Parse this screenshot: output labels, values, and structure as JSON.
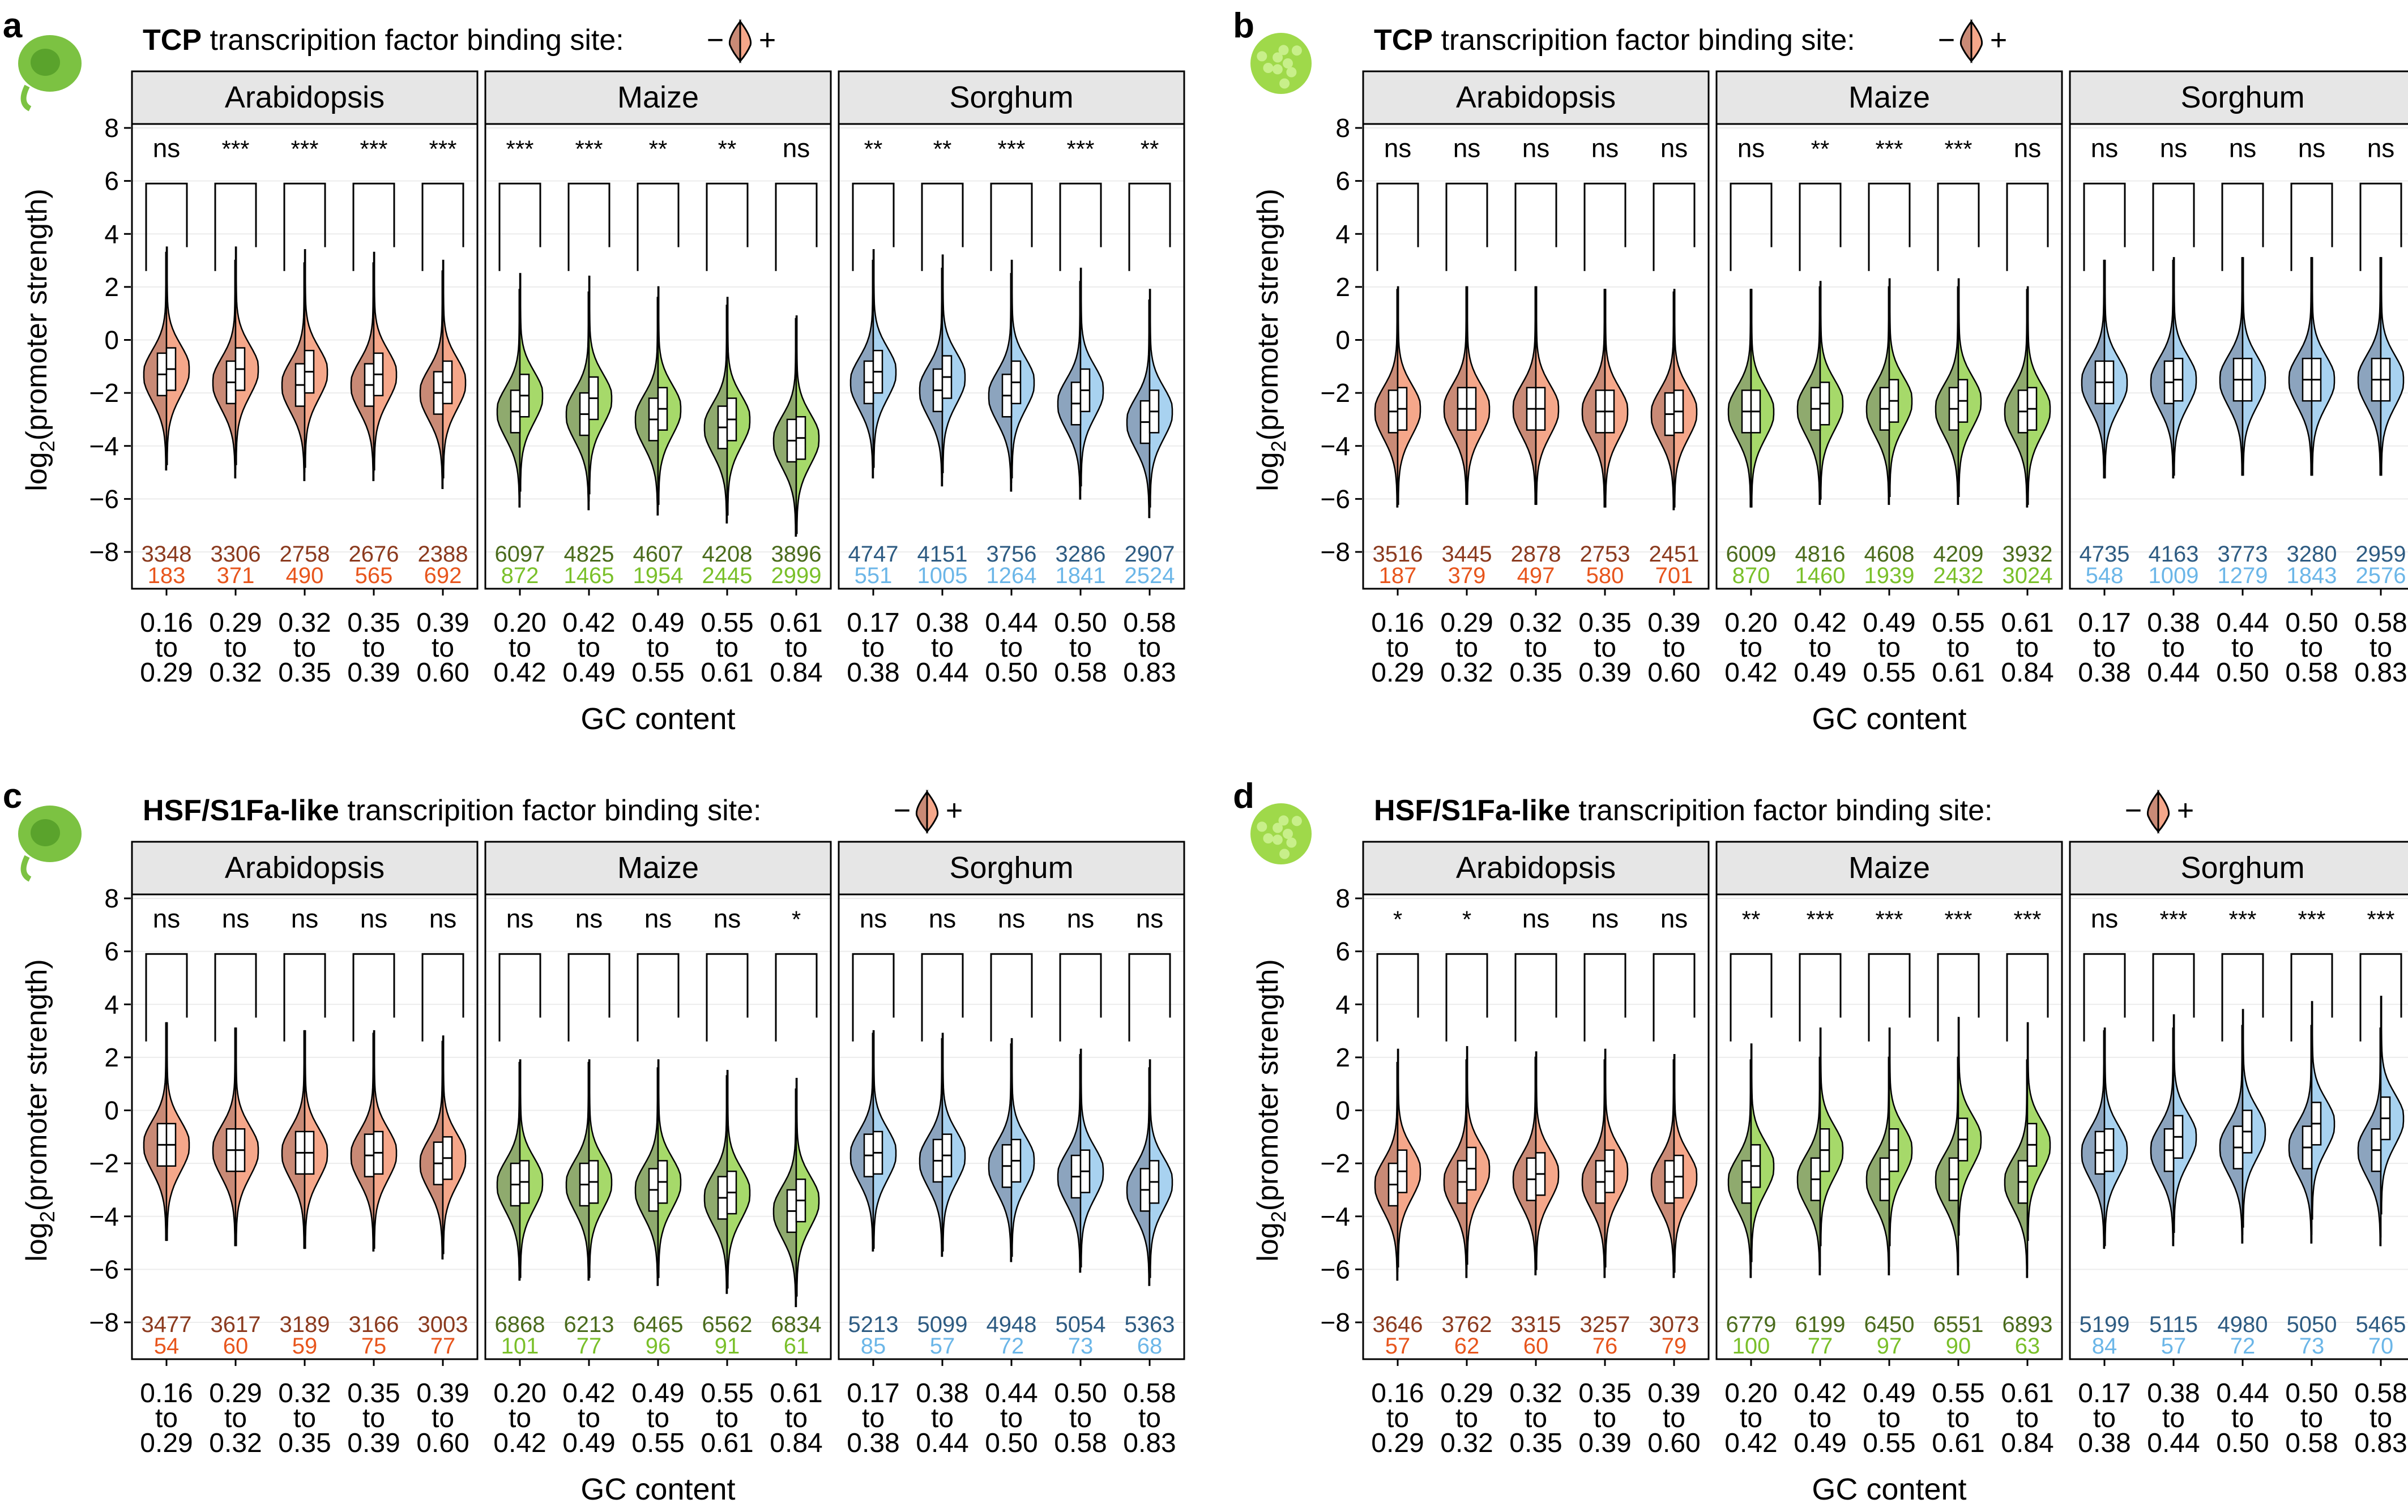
{
  "figure": {
    "ylabel_main": "log",
    "ylabel_sub": "2",
    "ylabel_rest": "(promoter strength)",
    "xlabel": "GC content",
    "legend_minus": "−",
    "legend_plus": "+",
    "tick_to": "to",
    "colors": {
      "arabidopsis_light": "#f5a78a",
      "arabidopsis_dark": "#c98a76",
      "maize_light": "#a6d96a",
      "maize_dark": "#8faa6e",
      "sorghum_light": "#a8d2f0",
      "sorghum_dark": "#8ca4be",
      "count_arabidopsis_top": "#8b3a1e",
      "count_arabidopsis_bottom": "#e8551c",
      "count_maize_top": "#4a6b1c",
      "count_maize_bottom": "#7ac02a",
      "count_sorghum_top": "#2d5b82",
      "count_sorghum_bottom": "#6bb6e8",
      "strip_fill": "#e6e6e6"
    },
    "icons": [
      "tobacco-leaf-icon",
      "maize-protoplast-icon",
      "tobacco-leaf-icon",
      "maize-protoplast-icon"
    ]
  },
  "chart_data": [
    {
      "panel_letter": "a",
      "type": "violin",
      "title_bold": "TCP",
      "title_rest": " transcripition factor binding site:",
      "ylim": [
        -9,
        8.5
      ],
      "yticks": [
        -8,
        -6,
        -4,
        -2,
        0,
        2,
        4,
        6,
        8
      ],
      "facets": [
        {
          "name": "Arabidopsis",
          "bins": [
            {
              "low": "0.16",
              "high": "0.29",
              "sig": "ns",
              "n_minus": 3348,
              "n_plus": 183,
              "med_minus": -1.3,
              "med_plus": -1.1
            },
            {
              "low": "0.29",
              "high": "0.32",
              "sig": "***",
              "n_minus": 3306,
              "n_plus": 371,
              "med_minus": -1.6,
              "med_plus": -1.1
            },
            {
              "low": "0.32",
              "high": "0.35",
              "sig": "***",
              "n_minus": 2758,
              "n_plus": 490,
              "med_minus": -1.7,
              "med_plus": -1.2
            },
            {
              "low": "0.35",
              "high": "0.39",
              "sig": "***",
              "n_minus": 2676,
              "n_plus": 565,
              "med_minus": -1.7,
              "med_plus": -1.3
            },
            {
              "low": "0.39",
              "high": "0.60",
              "sig": "***",
              "n_minus": 2388,
              "n_plus": 692,
              "med_minus": -2.0,
              "med_plus": -1.6
            }
          ]
        },
        {
          "name": "Maize",
          "bins": [
            {
              "low": "0.20",
              "high": "0.42",
              "sig": "***",
              "n_minus": 6097,
              "n_plus": 872,
              "med_minus": -2.7,
              "med_plus": -2.1
            },
            {
              "low": "0.42",
              "high": "0.49",
              "sig": "***",
              "n_minus": 4825,
              "n_plus": 1465,
              "med_minus": -2.8,
              "med_plus": -2.2
            },
            {
              "low": "0.49",
              "high": "0.55",
              "sig": "**",
              "n_minus": 4607,
              "n_plus": 1954,
              "med_minus": -3.0,
              "med_plus": -2.6
            },
            {
              "low": "0.55",
              "high": "0.61",
              "sig": "**",
              "n_minus": 4208,
              "n_plus": 2445,
              "med_minus": -3.3,
              "med_plus": -3.0
            },
            {
              "low": "0.61",
              "high": "0.84",
              "sig": "ns",
              "n_minus": 3896,
              "n_plus": 2999,
              "med_minus": -3.8,
              "med_plus": -3.7
            }
          ]
        },
        {
          "name": "Sorghum",
          "bins": [
            {
              "low": "0.17",
              "high": "0.38",
              "sig": "**",
              "n_minus": 4747,
              "n_plus": 551,
              "med_minus": -1.6,
              "med_plus": -1.2
            },
            {
              "low": "0.38",
              "high": "0.44",
              "sig": "**",
              "n_minus": 4151,
              "n_plus": 1005,
              "med_minus": -1.9,
              "med_plus": -1.4
            },
            {
              "low": "0.44",
              "high": "0.50",
              "sig": "***",
              "n_minus": 3756,
              "n_plus": 1264,
              "med_minus": -2.1,
              "med_plus": -1.6
            },
            {
              "low": "0.50",
              "high": "0.58",
              "sig": "***",
              "n_minus": 3286,
              "n_plus": 1841,
              "med_minus": -2.4,
              "med_plus": -1.9
            },
            {
              "low": "0.58",
              "high": "0.83",
              "sig": "**",
              "n_minus": 2907,
              "n_plus": 2524,
              "med_minus": -3.1,
              "med_plus": -2.7
            }
          ]
        }
      ]
    },
    {
      "panel_letter": "b",
      "type": "violin",
      "title_bold": "TCP",
      "title_rest": " transcripition factor binding site:",
      "ylim": [
        -9,
        8.5
      ],
      "yticks": [
        -8,
        -6,
        -4,
        -2,
        0,
        2,
        4,
        6,
        8
      ],
      "facets": [
        {
          "name": "Arabidopsis",
          "bins": [
            {
              "low": "0.16",
              "high": "0.29",
              "sig": "ns",
              "n_minus": 3516,
              "n_plus": 187,
              "med_minus": -2.7,
              "med_plus": -2.6
            },
            {
              "low": "0.29",
              "high": "0.32",
              "sig": "ns",
              "n_minus": 3445,
              "n_plus": 379,
              "med_minus": -2.6,
              "med_plus": -2.6
            },
            {
              "low": "0.32",
              "high": "0.35",
              "sig": "ns",
              "n_minus": 2878,
              "n_plus": 497,
              "med_minus": -2.6,
              "med_plus": -2.6
            },
            {
              "low": "0.35",
              "high": "0.39",
              "sig": "ns",
              "n_minus": 2753,
              "n_plus": 580,
              "med_minus": -2.7,
              "med_plus": -2.7
            },
            {
              "low": "0.39",
              "high": "0.60",
              "sig": "ns",
              "n_minus": 2451,
              "n_plus": 701,
              "med_minus": -2.8,
              "med_plus": -2.7
            }
          ]
        },
        {
          "name": "Maize",
          "bins": [
            {
              "low": "0.20",
              "high": "0.42",
              "sig": "ns",
              "n_minus": 6009,
              "n_plus": 870,
              "med_minus": -2.7,
              "med_plus": -2.7
            },
            {
              "low": "0.42",
              "high": "0.49",
              "sig": "**",
              "n_minus": 4816,
              "n_plus": 1460,
              "med_minus": -2.6,
              "med_plus": -2.4
            },
            {
              "low": "0.49",
              "high": "0.55",
              "sig": "***",
              "n_minus": 4608,
              "n_plus": 1939,
              "med_minus": -2.6,
              "med_plus": -2.3
            },
            {
              "low": "0.55",
              "high": "0.61",
              "sig": "***",
              "n_minus": 4209,
              "n_plus": 2432,
              "med_minus": -2.6,
              "med_plus": -2.3
            },
            {
              "low": "0.61",
              "high": "0.84",
              "sig": "ns",
              "n_minus": 3932,
              "n_plus": 3024,
              "med_minus": -2.7,
              "med_plus": -2.6
            }
          ]
        },
        {
          "name": "Sorghum",
          "bins": [
            {
              "low": "0.17",
              "high": "0.38",
              "sig": "ns",
              "n_minus": 4735,
              "n_plus": 548,
              "med_minus": -1.6,
              "med_plus": -1.6
            },
            {
              "low": "0.38",
              "high": "0.44",
              "sig": "ns",
              "n_minus": 4163,
              "n_plus": 1009,
              "med_minus": -1.6,
              "med_plus": -1.5
            },
            {
              "low": "0.44",
              "high": "0.50",
              "sig": "ns",
              "n_minus": 3773,
              "n_plus": 1279,
              "med_minus": -1.5,
              "med_plus": -1.5
            },
            {
              "low": "0.50",
              "high": "0.58",
              "sig": "ns",
              "n_minus": 3280,
              "n_plus": 1843,
              "med_minus": -1.5,
              "med_plus": -1.5
            },
            {
              "low": "0.58",
              "high": "0.83",
              "sig": "ns",
              "n_minus": 2959,
              "n_plus": 2576,
              "med_minus": -1.5,
              "med_plus": -1.5
            }
          ]
        }
      ]
    },
    {
      "panel_letter": "c",
      "type": "violin",
      "title_bold": "HSF/S1Fa-like",
      "title_rest": " transcripition factor binding site:",
      "ylim": [
        -9,
        8.5
      ],
      "yticks": [
        -8,
        -6,
        -4,
        -2,
        0,
        2,
        4,
        6,
        8
      ],
      "facets": [
        {
          "name": "Arabidopsis",
          "bins": [
            {
              "low": "0.16",
              "high": "0.29",
              "sig": "ns",
              "n_minus": 3477,
              "n_plus": 54,
              "med_minus": -1.3,
              "med_plus": -1.3
            },
            {
              "low": "0.29",
              "high": "0.32",
              "sig": "ns",
              "n_minus": 3617,
              "n_plus": 60,
              "med_minus": -1.5,
              "med_plus": -1.5
            },
            {
              "low": "0.32",
              "high": "0.35",
              "sig": "ns",
              "n_minus": 3189,
              "n_plus": 59,
              "med_minus": -1.6,
              "med_plus": -1.6
            },
            {
              "low": "0.35",
              "high": "0.39",
              "sig": "ns",
              "n_minus": 3166,
              "n_plus": 75,
              "med_minus": -1.7,
              "med_plus": -1.6
            },
            {
              "low": "0.39",
              "high": "0.60",
              "sig": "ns",
              "n_minus": 3003,
              "n_plus": 77,
              "med_minus": -2.0,
              "med_plus": -1.8
            }
          ]
        },
        {
          "name": "Maize",
          "bins": [
            {
              "low": "0.20",
              "high": "0.42",
              "sig": "ns",
              "n_minus": 6868,
              "n_plus": 101,
              "med_minus": -2.8,
              "med_plus": -2.7
            },
            {
              "low": "0.42",
              "high": "0.49",
              "sig": "ns",
              "n_minus": 6213,
              "n_plus": 77,
              "med_minus": -2.8,
              "med_plus": -2.7
            },
            {
              "low": "0.49",
              "high": "0.55",
              "sig": "ns",
              "n_minus": 6465,
              "n_plus": 96,
              "med_minus": -3.0,
              "med_plus": -2.7
            },
            {
              "low": "0.55",
              "high": "0.61",
              "sig": "ns",
              "n_minus": 6562,
              "n_plus": 91,
              "med_minus": -3.3,
              "med_plus": -3.1
            },
            {
              "low": "0.61",
              "high": "0.84",
              "sig": "*",
              "n_minus": 6834,
              "n_plus": 61,
              "med_minus": -3.8,
              "med_plus": -3.4
            }
          ]
        },
        {
          "name": "Sorghum",
          "bins": [
            {
              "low": "0.17",
              "high": "0.38",
              "sig": "ns",
              "n_minus": 5213,
              "n_plus": 85,
              "med_minus": -1.7,
              "med_plus": -1.6
            },
            {
              "low": "0.38",
              "high": "0.44",
              "sig": "ns",
              "n_minus": 5099,
              "n_plus": 57,
              "med_minus": -1.9,
              "med_plus": -1.7
            },
            {
              "low": "0.44",
              "high": "0.50",
              "sig": "ns",
              "n_minus": 4948,
              "n_plus": 72,
              "med_minus": -2.1,
              "med_plus": -1.9
            },
            {
              "low": "0.50",
              "high": "0.58",
              "sig": "ns",
              "n_minus": 5054,
              "n_plus": 73,
              "med_minus": -2.5,
              "med_plus": -2.3
            },
            {
              "low": "0.58",
              "high": "0.83",
              "sig": "ns",
              "n_minus": 5363,
              "n_plus": 68,
              "med_minus": -3.0,
              "med_plus": -2.7
            }
          ]
        }
      ]
    },
    {
      "panel_letter": "d",
      "type": "violin",
      "title_bold": "HSF/S1Fa-like",
      "title_rest": " transcripition factor binding site:",
      "ylim": [
        -9,
        8.5
      ],
      "yticks": [
        -8,
        -6,
        -4,
        -2,
        0,
        2,
        4,
        6,
        8
      ],
      "facets": [
        {
          "name": "Arabidopsis",
          "bins": [
            {
              "low": "0.16",
              "high": "0.29",
              "sig": "*",
              "n_minus": 3646,
              "n_plus": 57,
              "med_minus": -2.8,
              "med_plus": -2.3
            },
            {
              "low": "0.29",
              "high": "0.32",
              "sig": "*",
              "n_minus": 3762,
              "n_plus": 62,
              "med_minus": -2.7,
              "med_plus": -2.2
            },
            {
              "low": "0.32",
              "high": "0.35",
              "sig": "ns",
              "n_minus": 3315,
              "n_plus": 60,
              "med_minus": -2.6,
              "med_plus": -2.4
            },
            {
              "low": "0.35",
              "high": "0.39",
              "sig": "ns",
              "n_minus": 3257,
              "n_plus": 76,
              "med_minus": -2.7,
              "med_plus": -2.3
            },
            {
              "low": "0.39",
              "high": "0.60",
              "sig": "ns",
              "n_minus": 3073,
              "n_plus": 79,
              "med_minus": -2.7,
              "med_plus": -2.5
            }
          ]
        },
        {
          "name": "Maize",
          "bins": [
            {
              "low": "0.20",
              "high": "0.42",
              "sig": "**",
              "n_minus": 6779,
              "n_plus": 100,
              "med_minus": -2.7,
              "med_plus": -2.1
            },
            {
              "low": "0.42",
              "high": "0.49",
              "sig": "***",
              "n_minus": 6199,
              "n_plus": 77,
              "med_minus": -2.6,
              "med_plus": -1.5
            },
            {
              "low": "0.49",
              "high": "0.55",
              "sig": "***",
              "n_minus": 6450,
              "n_plus": 97,
              "med_minus": -2.6,
              "med_plus": -1.5
            },
            {
              "low": "0.55",
              "high": "0.61",
              "sig": "***",
              "n_minus": 6551,
              "n_plus": 90,
              "med_minus": -2.6,
              "med_plus": -1.1
            },
            {
              "low": "0.61",
              "high": "0.84",
              "sig": "***",
              "n_minus": 6893,
              "n_plus": 63,
              "med_minus": -2.7,
              "med_plus": -1.3
            }
          ]
        },
        {
          "name": "Sorghum",
          "bins": [
            {
              "low": "0.17",
              "high": "0.38",
              "sig": "ns",
              "n_minus": 5199,
              "n_plus": 84,
              "med_minus": -1.6,
              "med_plus": -1.5
            },
            {
              "low": "0.38",
              "high": "0.44",
              "sig": "***",
              "n_minus": 5115,
              "n_plus": 57,
              "med_minus": -1.5,
              "med_plus": -1.0
            },
            {
              "low": "0.44",
              "high": "0.50",
              "sig": "***",
              "n_minus": 4980,
              "n_plus": 72,
              "med_minus": -1.4,
              "med_plus": -0.8
            },
            {
              "low": "0.50",
              "high": "0.58",
              "sig": "***",
              "n_minus": 5050,
              "n_plus": 73,
              "med_minus": -1.4,
              "med_plus": -0.5
            },
            {
              "low": "0.58",
              "high": "0.83",
              "sig": "***",
              "n_minus": 5465,
              "n_plus": 70,
              "med_minus": -1.5,
              "med_plus": -0.3
            }
          ]
        }
      ]
    }
  ]
}
